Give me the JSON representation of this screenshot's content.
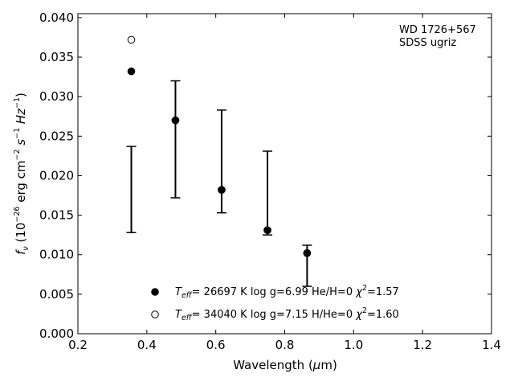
{
  "chart_data": {
    "type": "scatter",
    "annotation_lines": [
      "WD 1726+567",
      "SDSS ugriz"
    ],
    "xlabel": {
      "prefix": "Wavelength (",
      "unit_symbol": "μ",
      "suffix": "m)"
    },
    "ylabel": {
      "prefix": "f",
      "sub": "ν",
      "body": " (10",
      "exp1": "−26",
      "mid1": " erg cm",
      "exp2": "−2",
      "mid2": " s",
      "exp3": "−1",
      "mid3": " Hz",
      "exp4": "−1",
      "end": ")"
    },
    "xlim": [
      0.2,
      1.4
    ],
    "ylim": [
      0.0,
      0.0405
    ],
    "xticks": [
      0.2,
      0.4,
      0.6,
      0.8,
      1.0,
      1.2,
      1.4
    ],
    "xtick_labels": [
      "0.2",
      "0.4",
      "0.6",
      "0.8",
      "1.0",
      "1.2",
      "1.4"
    ],
    "yticks": [
      0.0,
      0.005,
      0.01,
      0.015,
      0.02,
      0.025,
      0.03,
      0.035,
      0.04
    ],
    "ytick_labels": [
      "0.000",
      "0.005",
      "0.010",
      "0.015",
      "0.020",
      "0.025",
      "0.030",
      "0.035",
      "0.040"
    ],
    "observations": [
      {
        "x": 0.355,
        "low": 0.0128,
        "high": 0.0237
      },
      {
        "x": 0.483,
        "low": 0.0172,
        "high": 0.032
      },
      {
        "x": 0.617,
        "low": 0.0153,
        "high": 0.0283
      },
      {
        "x": 0.75,
        "low": 0.0125,
        "high": 0.0231
      },
      {
        "x": 0.865,
        "low": 0.006,
        "high": 0.0112
      }
    ],
    "series": [
      {
        "marker": "filled",
        "label": {
          "t": "T",
          "sub": "eff",
          "a": "= 26697 K  log g=6.99  He/H=0  ",
          "chi": "χ",
          "sup": "2",
          "b": "=1.57"
        },
        "x": [
          0.355,
          0.483,
          0.617,
          0.75,
          0.865
        ],
        "y": [
          0.0332,
          0.027,
          0.0182,
          0.0131,
          0.0102
        ]
      },
      {
        "marker": "open",
        "label": {
          "t": "T",
          "sub": "eff",
          "a": "= 34040 K  log g=7.15  H/He=0  ",
          "chi": "χ",
          "sup": "2",
          "b": "=1.60"
        },
        "x": [
          0.355,
          0.483,
          0.617,
          0.75,
          0.865
        ],
        "y": [
          0.0372,
          0.027,
          0.0182,
          0.0131,
          0.0102
        ]
      }
    ],
    "legend_position": "bottom-center",
    "grid": false
  }
}
